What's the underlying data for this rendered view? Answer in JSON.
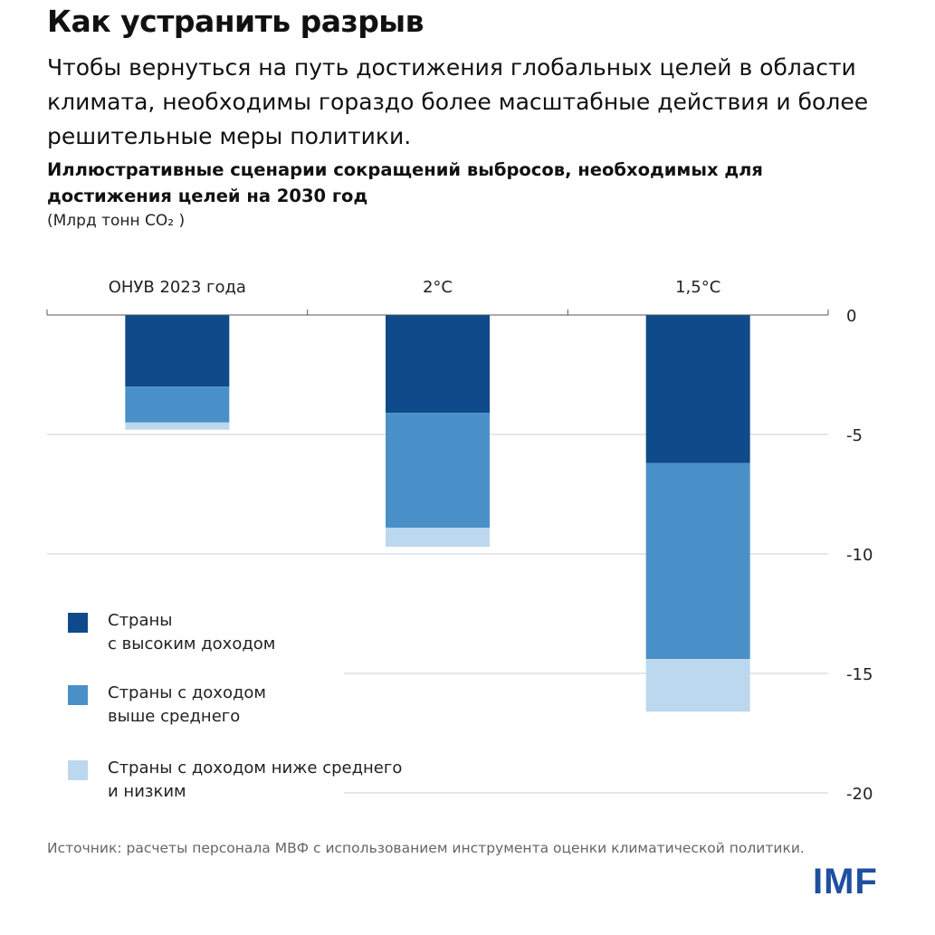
{
  "header": {
    "title": "Как устранить разрыв",
    "subtitle": "Чтобы вернуться на путь достижения глобальных целей в области климата, необходимы гораздо более масштабные действия и более решительные меры политики."
  },
  "chart_data": {
    "type": "bar",
    "stacked": true,
    "title": "Иллюстративные сценарии сокращений выбросов, необходимых для достижения целей на 2030 год",
    "unit": "(Млрд тонн CO₂ )",
    "categories": [
      "ОНУВ 2023 года",
      "2°C",
      "1,5°C"
    ],
    "series": [
      {
        "name": "Страны с высоким доходом",
        "color": "#0f4a8a",
        "values": [
          -3.0,
          -4.1,
          -6.2
        ]
      },
      {
        "name": "Страны с доходом выше среднего",
        "color": "#4a90c8",
        "values": [
          -1.5,
          -4.8,
          -8.2
        ]
      },
      {
        "name": "Страны с доходом ниже среднего и низким",
        "color": "#bcd8ee",
        "values": [
          -0.3,
          -0.8,
          -2.2
        ]
      }
    ],
    "ylim": [
      -20,
      0
    ],
    "yticks": [
      0,
      -5,
      -10,
      -15,
      -20
    ],
    "ytick_labels": [
      "0",
      "-5",
      "-10",
      "-15",
      "-20"
    ],
    "y_axis_position": "right",
    "category_labels_position": "top",
    "grid": true,
    "legend_placement": "bottom-left"
  },
  "legend": {
    "items": [
      {
        "line1": "Страны",
        "line2": "с высоким доходом"
      },
      {
        "line1": "Страны с доходом",
        "line2": "выше среднего"
      },
      {
        "line1": "Страны с доходом ниже среднего",
        "line2": "и низким"
      }
    ]
  },
  "footer": {
    "source": "Источник: расчеты персонала МВФ с использованием инструмента оценки климатической политики.",
    "logo": "IMF"
  }
}
